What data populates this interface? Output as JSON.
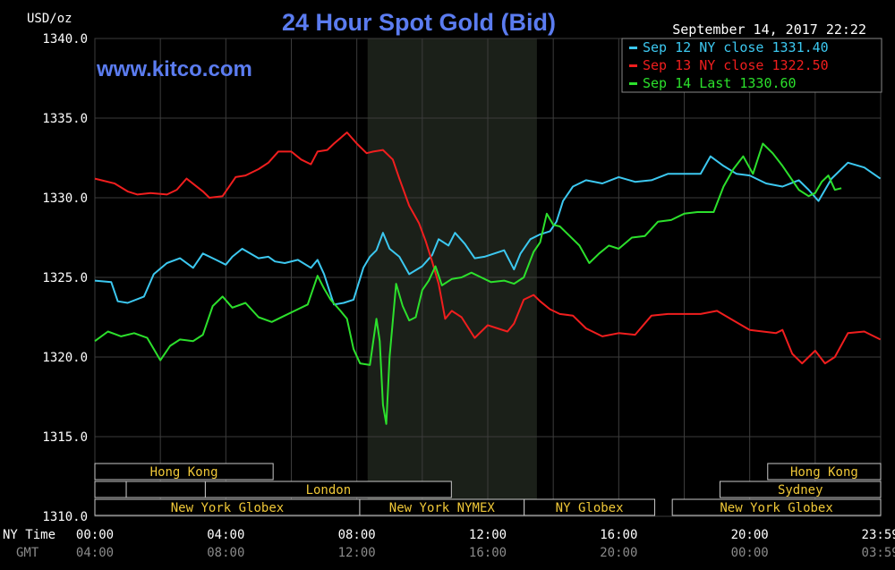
{
  "header": {
    "unit": "USD/oz",
    "title": "24 Hour Spot Gold (Bid)",
    "timestamp": "September 14, 2017 22:22",
    "website": "www.kitco.com"
  },
  "colors": {
    "background": "#000000",
    "grid": "#3c3c3c",
    "nymex_shade": "#1b2019",
    "title": "#5b7cf0",
    "axis_text": "#ffffff",
    "gmt_text": "#8a8a8a",
    "session_text": "#f0c838",
    "session_border": "#c8c8c8",
    "sep12": "#3cc8f0",
    "sep13": "#f01e1e",
    "sep14": "#2ce02c"
  },
  "time_axis": {
    "ny_label": "NY Time",
    "gmt_label": "GMT",
    "ny_ticks": [
      "00:00",
      "04:00",
      "08:00",
      "12:00",
      "16:00",
      "20:00",
      "23:59"
    ],
    "gmt_ticks": [
      "04:00",
      "08:00",
      "12:00",
      "16:00",
      "20:00",
      "00:00",
      "03:59"
    ]
  },
  "sessions": [
    {
      "label": "Hong Kong",
      "row": 0,
      "start": 0,
      "end": 7.1
    },
    {
      "label": "",
      "row": 1,
      "start": 0,
      "end": 1.25
    },
    {
      "label": "",
      "row": 1,
      "start": 1.25,
      "end": 4.4
    },
    {
      "label": "London",
      "row": 1,
      "start": 4.4,
      "end": 14.2
    },
    {
      "label": "New York Globex",
      "row": 2,
      "start": 0,
      "end": 10.55
    },
    {
      "label": "New York NYMEX",
      "row": 2,
      "start": 10.55,
      "end": 17.1
    },
    {
      "label": "NY Globex",
      "row": 2,
      "start": 17.1,
      "end": 22.3
    },
    {
      "label": "Hong Kong",
      "row": 0,
      "start": 26.8,
      "end": 31.3
    },
    {
      "label": "Sydney",
      "row": 1,
      "start": 24.9,
      "end": 31.3
    },
    {
      "label": "New York Globex",
      "row": 2,
      "start": 23.0,
      "end": 31.3
    }
  ],
  "chart_data": {
    "type": "line",
    "title": "24 Hour Spot Gold (Bid)",
    "ylabel": "USD/oz",
    "ylim": [
      1310,
      1340
    ],
    "yticks": [
      1310,
      1315,
      1320,
      1325,
      1330,
      1335,
      1340
    ],
    "xlim": [
      0,
      24
    ],
    "x_unit": "NY Time (hours)",
    "nymex_session": [
      8.33,
      13.5
    ],
    "grid": true,
    "legend_position": "top-right",
    "series": [
      {
        "name": "Sep 12 NY close 1331.40",
        "color": "#3cc8f0",
        "x": [
          0,
          0.5,
          0.7,
          1.0,
          1.5,
          1.8,
          2.2,
          2.6,
          3.0,
          3.3,
          3.7,
          4.0,
          4.2,
          4.5,
          5.0,
          5.3,
          5.5,
          5.8,
          6.2,
          6.6,
          6.8,
          7.0,
          7.3,
          7.6,
          7.9,
          8.2,
          8.4,
          8.6,
          8.8,
          9.0,
          9.3,
          9.6,
          10.0,
          10.3,
          10.5,
          10.8,
          11.0,
          11.3,
          11.6,
          11.9,
          12.2,
          12.5,
          12.8,
          13.0,
          13.3,
          13.6,
          13.9,
          14.1,
          14.3,
          14.6,
          15.0,
          15.5,
          16.0,
          16.5,
          17.0,
          17.5,
          18.0,
          18.5,
          18.8,
          19.2,
          19.6,
          20.0,
          20.5,
          21.0,
          21.5,
          21.8,
          22.1,
          22.5,
          23.0,
          23.5,
          23.99
        ],
        "y": [
          1324.8,
          1324.7,
          1323.5,
          1323.4,
          1323.8,
          1325.2,
          1325.9,
          1326.2,
          1325.6,
          1326.5,
          1326.1,
          1325.8,
          1326.3,
          1326.8,
          1326.2,
          1326.3,
          1326.0,
          1325.9,
          1326.1,
          1325.6,
          1326.1,
          1325.2,
          1323.3,
          1323.4,
          1323.6,
          1325.6,
          1326.3,
          1326.7,
          1327.8,
          1326.8,
          1326.3,
          1325.2,
          1325.7,
          1326.4,
          1327.4,
          1327.0,
          1327.8,
          1327.1,
          1326.2,
          1326.3,
          1326.5,
          1326.7,
          1325.5,
          1326.5,
          1327.4,
          1327.7,
          1327.9,
          1328.5,
          1329.8,
          1330.7,
          1331.1,
          1330.9,
          1331.3,
          1331.0,
          1331.1,
          1331.5,
          1331.5,
          1331.5,
          1332.6,
          1332.0,
          1331.5,
          1331.4,
          1330.9,
          1330.7,
          1331.1,
          1330.5,
          1329.8,
          1331.2,
          1332.2,
          1331.9,
          1331.2
        ]
      },
      {
        "name": "Sep 13 NY close 1322.50",
        "color": "#f01e1e",
        "x": [
          0,
          0.6,
          1.0,
          1.3,
          1.7,
          2.2,
          2.5,
          2.8,
          3.3,
          3.5,
          3.9,
          4.3,
          4.6,
          5.0,
          5.3,
          5.6,
          6.0,
          6.3,
          6.6,
          6.8,
          7.1,
          7.3,
          7.7,
          8.0,
          8.3,
          8.5,
          8.8,
          9.1,
          9.3,
          9.6,
          9.9,
          10.1,
          10.3,
          10.5,
          10.7,
          10.9,
          11.2,
          11.6,
          12.0,
          12.3,
          12.6,
          12.8,
          13.1,
          13.4,
          13.6,
          13.9,
          14.2,
          14.6,
          15.0,
          15.5,
          16.0,
          16.5,
          17.0,
          17.5,
          18.0,
          18.5,
          19.0,
          19.5,
          20.0,
          20.4,
          20.8,
          21.0,
          21.3,
          21.6,
          22.0,
          22.3,
          22.6,
          23.0,
          23.5,
          23.99
        ],
        "y": [
          1331.2,
          1330.9,
          1330.4,
          1330.2,
          1330.3,
          1330.2,
          1330.5,
          1331.2,
          1330.4,
          1330.0,
          1330.1,
          1331.3,
          1331.4,
          1331.8,
          1332.2,
          1332.9,
          1332.9,
          1332.4,
          1332.1,
          1332.9,
          1333.0,
          1333.4,
          1334.1,
          1333.4,
          1332.8,
          1332.9,
          1333.0,
          1332.4,
          1331.2,
          1329.5,
          1328.4,
          1327.3,
          1326.0,
          1324.6,
          1322.4,
          1322.9,
          1322.5,
          1321.2,
          1322.0,
          1321.8,
          1321.6,
          1322.1,
          1323.6,
          1323.9,
          1323.5,
          1323.0,
          1322.7,
          1322.6,
          1321.8,
          1321.3,
          1321.5,
          1321.4,
          1322.6,
          1322.7,
          1322.7,
          1322.7,
          1322.9,
          1322.3,
          1321.7,
          1321.6,
          1321.5,
          1321.7,
          1320.2,
          1319.6,
          1320.4,
          1319.6,
          1320.0,
          1321.5,
          1321.6,
          1321.1
        ]
      },
      {
        "name": "Sep 14 Last 1330.60",
        "color": "#2ce02c",
        "x": [
          0,
          0.4,
          0.8,
          1.2,
          1.6,
          2.0,
          2.3,
          2.6,
          3.0,
          3.3,
          3.6,
          3.9,
          4.2,
          4.6,
          5.0,
          5.4,
          5.8,
          6.2,
          6.5,
          6.8,
          7.0,
          7.2,
          7.5,
          7.7,
          7.9,
          8.1,
          8.4,
          8.6,
          8.7,
          8.8,
          8.9,
          9.0,
          9.2,
          9.4,
          9.6,
          9.8,
          10.0,
          10.2,
          10.4,
          10.6,
          10.9,
          11.2,
          11.5,
          11.8,
          12.1,
          12.5,
          12.8,
          13.1,
          13.4,
          13.6,
          13.8,
          14.0,
          14.2,
          14.5,
          14.8,
          15.1,
          15.4,
          15.7,
          16.0,
          16.4,
          16.8,
          17.2,
          17.6,
          18.0,
          18.4,
          18.6,
          18.9,
          19.2,
          19.5,
          19.8,
          20.1,
          20.4,
          20.7,
          21.0,
          21.2,
          21.5,
          21.8,
          22.0,
          22.2,
          22.4,
          22.6,
          22.8
        ],
        "y": [
          1321.0,
          1321.6,
          1321.3,
          1321.5,
          1321.2,
          1319.8,
          1320.7,
          1321.1,
          1321.0,
          1321.4,
          1323.2,
          1323.8,
          1323.1,
          1323.4,
          1322.5,
          1322.2,
          1322.6,
          1323.0,
          1323.3,
          1325.1,
          1324.3,
          1323.6,
          1322.9,
          1322.4,
          1320.5,
          1319.6,
          1319.5,
          1322.4,
          1321.0,
          1317.0,
          1315.8,
          1320.0,
          1324.6,
          1323.2,
          1322.3,
          1322.5,
          1324.2,
          1324.8,
          1325.7,
          1324.5,
          1324.9,
          1325.0,
          1325.3,
          1325.0,
          1324.7,
          1324.8,
          1324.6,
          1325.0,
          1326.6,
          1327.2,
          1329.0,
          1328.3,
          1328.2,
          1327.6,
          1327.0,
          1325.9,
          1326.5,
          1327.0,
          1326.8,
          1327.5,
          1327.6,
          1328.5,
          1328.6,
          1329.0,
          1329.1,
          1329.1,
          1329.1,
          1330.7,
          1331.8,
          1332.6,
          1331.5,
          1333.4,
          1332.8,
          1332.0,
          1331.4,
          1330.5,
          1330.1,
          1330.3,
          1331.0,
          1331.4,
          1330.5,
          1330.6
        ]
      }
    ]
  }
}
